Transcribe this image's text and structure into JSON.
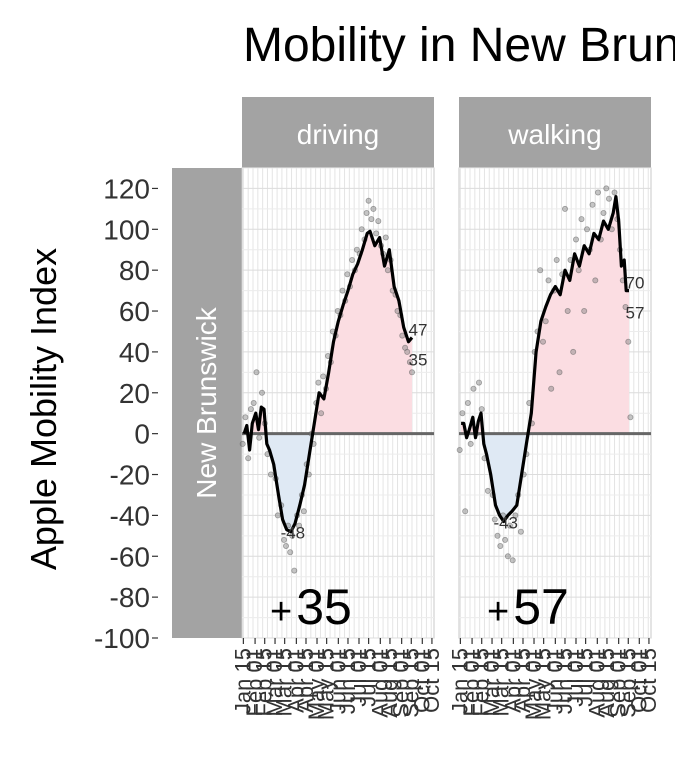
{
  "chart_data": {
    "type": "line",
    "title": "Mobility in New Brunswick",
    "ylabel": "Apple Mobility Index",
    "xlabel": "",
    "row_label": "New Brunswick",
    "ylim": [
      -100,
      130
    ],
    "yticks": [
      120,
      100,
      80,
      60,
      40,
      20,
      0,
      -20,
      -40,
      -60,
      -80,
      -100
    ],
    "x_range": [
      "2020-01-13",
      "2020-10-18"
    ],
    "xticks": [
      {
        "date": "2020-01-15",
        "label": "Jan 15"
      },
      {
        "date": "2020-02-01",
        "label": "Feb 01"
      },
      {
        "date": "2020-02-15",
        "label": "Feb 15"
      },
      {
        "date": "2020-03-01",
        "label": "Mar 01"
      },
      {
        "date": "2020-03-15",
        "label": "Mar 15"
      },
      {
        "date": "2020-04-01",
        "label": "Apr 01"
      },
      {
        "date": "2020-04-15",
        "label": "Apr 15"
      },
      {
        "date": "2020-05-01",
        "label": "May 01"
      },
      {
        "date": "2020-05-15",
        "label": "May 15"
      },
      {
        "date": "2020-06-01",
        "label": "Jun 01"
      },
      {
        "date": "2020-06-15",
        "label": "Jun 15"
      },
      {
        "date": "2020-07-01",
        "label": "Jul 01"
      },
      {
        "date": "2020-07-15",
        "label": "Jul 15"
      },
      {
        "date": "2020-08-01",
        "label": "Aug 01"
      },
      {
        "date": "2020-08-15",
        "label": "Aug 15"
      },
      {
        "date": "2020-09-01",
        "label": "Sep 01"
      },
      {
        "date": "2020-09-15",
        "label": "Sep 15"
      },
      {
        "date": "2020-10-01",
        "label": "Oct 01"
      },
      {
        "date": "2020-10-15",
        "label": "Oct 15"
      }
    ],
    "grid": true,
    "colors": {
      "positive_fill": "#fbdde2",
      "negative_fill": "#dfe9f4",
      "line": "#000000",
      "points": "#7f7f7f",
      "strip": "#a3a3a3",
      "zero_line": "#666666"
    },
    "panels": [
      {
        "name": "driving",
        "summary": "+35",
        "min_label": "-48",
        "end_labels": [
          "47",
          "35"
        ],
        "trend": [
          {
            "x": "2020-01-16",
            "y": 0
          },
          {
            "x": "2020-01-20",
            "y": 4
          },
          {
            "x": "2020-01-24",
            "y": -8
          },
          {
            "x": "2020-01-28",
            "y": 5
          },
          {
            "x": "2020-02-02",
            "y": 10
          },
          {
            "x": "2020-02-06",
            "y": 2
          },
          {
            "x": "2020-02-10",
            "y": 13
          },
          {
            "x": "2020-02-14",
            "y": 12
          },
          {
            "x": "2020-02-18",
            "y": -5
          },
          {
            "x": "2020-02-22",
            "y": -8
          },
          {
            "x": "2020-02-28",
            "y": -15
          },
          {
            "x": "2020-03-06",
            "y": -30
          },
          {
            "x": "2020-03-12",
            "y": -42
          },
          {
            "x": "2020-03-18",
            "y": -47
          },
          {
            "x": "2020-03-24",
            "y": -48
          },
          {
            "x": "2020-03-30",
            "y": -44
          },
          {
            "x": "2020-04-06",
            "y": -35
          },
          {
            "x": "2020-04-13",
            "y": -25
          },
          {
            "x": "2020-04-20",
            "y": -10
          },
          {
            "x": "2020-04-27",
            "y": 5
          },
          {
            "x": "2020-05-04",
            "y": 20
          },
          {
            "x": "2020-05-11",
            "y": 17
          },
          {
            "x": "2020-05-18",
            "y": 30
          },
          {
            "x": "2020-05-25",
            "y": 45
          },
          {
            "x": "2020-06-01",
            "y": 55
          },
          {
            "x": "2020-06-08",
            "y": 63
          },
          {
            "x": "2020-06-15",
            "y": 70
          },
          {
            "x": "2020-06-22",
            "y": 78
          },
          {
            "x": "2020-06-29",
            "y": 83
          },
          {
            "x": "2020-07-06",
            "y": 90
          },
          {
            "x": "2020-07-13",
            "y": 98
          },
          {
            "x": "2020-07-17",
            "y": 99
          },
          {
            "x": "2020-07-24",
            "y": 92
          },
          {
            "x": "2020-07-31",
            "y": 96
          },
          {
            "x": "2020-08-07",
            "y": 82
          },
          {
            "x": "2020-08-14",
            "y": 90
          },
          {
            "x": "2020-08-21",
            "y": 72
          },
          {
            "x": "2020-08-28",
            "y": 65
          },
          {
            "x": "2020-09-04",
            "y": 52
          },
          {
            "x": "2020-09-11",
            "y": 45
          },
          {
            "x": "2020-09-16",
            "y": 47
          }
        ],
        "points": [
          {
            "x": "2020-01-14",
            "y": -5
          },
          {
            "x": "2020-01-18",
            "y": 8
          },
          {
            "x": "2020-01-22",
            "y": -12
          },
          {
            "x": "2020-01-26",
            "y": 12
          },
          {
            "x": "2020-01-30",
            "y": 15
          },
          {
            "x": "2020-02-03",
            "y": 30
          },
          {
            "x": "2020-02-07",
            "y": -2
          },
          {
            "x": "2020-02-11",
            "y": 20
          },
          {
            "x": "2020-02-15",
            "y": 5
          },
          {
            "x": "2020-02-19",
            "y": -10
          },
          {
            "x": "2020-02-24",
            "y": -20
          },
          {
            "x": "2020-03-02",
            "y": -22
          },
          {
            "x": "2020-03-05",
            "y": -40
          },
          {
            "x": "2020-03-10",
            "y": -35
          },
          {
            "x": "2020-03-14",
            "y": -52
          },
          {
            "x": "2020-03-17",
            "y": -55
          },
          {
            "x": "2020-03-20",
            "y": -45
          },
          {
            "x": "2020-03-23",
            "y": -58
          },
          {
            "x": "2020-03-26",
            "y": -50
          },
          {
            "x": "2020-03-29",
            "y": -67
          },
          {
            "x": "2020-04-02",
            "y": -40
          },
          {
            "x": "2020-04-05",
            "y": -45
          },
          {
            "x": "2020-04-09",
            "y": -30
          },
          {
            "x": "2020-04-12",
            "y": -38
          },
          {
            "x": "2020-04-16",
            "y": -15
          },
          {
            "x": "2020-04-19",
            "y": -20
          },
          {
            "x": "2020-04-23",
            "y": 0
          },
          {
            "x": "2020-04-26",
            "y": -5
          },
          {
            "x": "2020-04-30",
            "y": 15
          },
          {
            "x": "2020-05-03",
            "y": 25
          },
          {
            "x": "2020-05-07",
            "y": 10
          },
          {
            "x": "2020-05-10",
            "y": 28
          },
          {
            "x": "2020-05-14",
            "y": 22
          },
          {
            "x": "2020-05-17",
            "y": 38
          },
          {
            "x": "2020-05-21",
            "y": 35
          },
          {
            "x": "2020-05-24",
            "y": 50
          },
          {
            "x": "2020-05-28",
            "y": 48
          },
          {
            "x": "2020-05-31",
            "y": 60
          },
          {
            "x": "2020-06-04",
            "y": 58
          },
          {
            "x": "2020-06-07",
            "y": 70
          },
          {
            "x": "2020-06-11",
            "y": 65
          },
          {
            "x": "2020-06-14",
            "y": 78
          },
          {
            "x": "2020-06-18",
            "y": 72
          },
          {
            "x": "2020-06-21",
            "y": 85
          },
          {
            "x": "2020-06-25",
            "y": 80
          },
          {
            "x": "2020-06-28",
            "y": 90
          },
          {
            "x": "2020-07-02",
            "y": 88
          },
          {
            "x": "2020-07-05",
            "y": 100
          },
          {
            "x": "2020-07-09",
            "y": 95
          },
          {
            "x": "2020-07-12",
            "y": 108
          },
          {
            "x": "2020-07-15",
            "y": 114
          },
          {
            "x": "2020-07-19",
            "y": 105
          },
          {
            "x": "2020-07-22",
            "y": 110
          },
          {
            "x": "2020-07-26",
            "y": 98
          },
          {
            "x": "2020-07-29",
            "y": 104
          },
          {
            "x": "2020-08-02",
            "y": 92
          },
          {
            "x": "2020-08-05",
            "y": 88
          },
          {
            "x": "2020-08-09",
            "y": 96
          },
          {
            "x": "2020-08-12",
            "y": 80
          },
          {
            "x": "2020-08-16",
            "y": 85
          },
          {
            "x": "2020-08-19",
            "y": 70
          },
          {
            "x": "2020-08-23",
            "y": 68
          },
          {
            "x": "2020-08-26",
            "y": 60
          },
          {
            "x": "2020-08-30",
            "y": 58
          },
          {
            "x": "2020-09-02",
            "y": 48
          },
          {
            "x": "2020-09-06",
            "y": 42
          },
          {
            "x": "2020-09-09",
            "y": 40
          },
          {
            "x": "2020-09-13",
            "y": 35
          },
          {
            "x": "2020-09-16",
            "y": 30
          }
        ]
      },
      {
        "name": "walking",
        "summary": "+57",
        "min_label": "-43",
        "end_labels": [
          "70",
          "57"
        ],
        "trend": [
          {
            "x": "2020-01-16",
            "y": 5
          },
          {
            "x": "2020-01-20",
            "y": 5
          },
          {
            "x": "2020-01-24",
            "y": -2
          },
          {
            "x": "2020-01-28",
            "y": 2
          },
          {
            "x": "2020-02-02",
            "y": 8
          },
          {
            "x": "2020-02-06",
            "y": -2
          },
          {
            "x": "2020-02-10",
            "y": 6
          },
          {
            "x": "2020-02-14",
            "y": 10
          },
          {
            "x": "2020-02-18",
            "y": -5
          },
          {
            "x": "2020-02-22",
            "y": -10
          },
          {
            "x": "2020-02-28",
            "y": -20
          },
          {
            "x": "2020-03-06",
            "y": -35
          },
          {
            "x": "2020-03-12",
            "y": -40
          },
          {
            "x": "2020-03-18",
            "y": -43
          },
          {
            "x": "2020-03-24",
            "y": -40
          },
          {
            "x": "2020-03-30",
            "y": -38
          },
          {
            "x": "2020-04-06",
            "y": -35
          },
          {
            "x": "2020-04-13",
            "y": -20
          },
          {
            "x": "2020-04-20",
            "y": -5
          },
          {
            "x": "2020-04-27",
            "y": 10
          },
          {
            "x": "2020-05-04",
            "y": 40
          },
          {
            "x": "2020-05-11",
            "y": 55
          },
          {
            "x": "2020-05-18",
            "y": 62
          },
          {
            "x": "2020-05-25",
            "y": 68
          },
          {
            "x": "2020-06-01",
            "y": 72
          },
          {
            "x": "2020-06-08",
            "y": 68
          },
          {
            "x": "2020-06-15",
            "y": 80
          },
          {
            "x": "2020-06-22",
            "y": 75
          },
          {
            "x": "2020-06-29",
            "y": 88
          },
          {
            "x": "2020-07-06",
            "y": 82
          },
          {
            "x": "2020-07-13",
            "y": 92
          },
          {
            "x": "2020-07-20",
            "y": 88
          },
          {
            "x": "2020-07-27",
            "y": 98
          },
          {
            "x": "2020-08-03",
            "y": 95
          },
          {
            "x": "2020-08-10",
            "y": 104
          },
          {
            "x": "2020-08-17",
            "y": 100
          },
          {
            "x": "2020-08-24",
            "y": 108
          },
          {
            "x": "2020-08-28",
            "y": 116
          },
          {
            "x": "2020-09-01",
            "y": 104
          },
          {
            "x": "2020-09-05",
            "y": 82
          },
          {
            "x": "2020-09-09",
            "y": 85
          },
          {
            "x": "2020-09-12",
            "y": 70
          },
          {
            "x": "2020-09-16",
            "y": 70
          }
        ],
        "points": [
          {
            "x": "2020-01-14",
            "y": -8
          },
          {
            "x": "2020-01-18",
            "y": 10
          },
          {
            "x": "2020-01-22",
            "y": -38
          },
          {
            "x": "2020-01-26",
            "y": 15
          },
          {
            "x": "2020-01-30",
            "y": -5
          },
          {
            "x": "2020-02-03",
            "y": 22
          },
          {
            "x": "2020-02-07",
            "y": 0
          },
          {
            "x": "2020-02-11",
            "y": 25
          },
          {
            "x": "2020-02-15",
            "y": 12
          },
          {
            "x": "2020-02-19",
            "y": -12
          },
          {
            "x": "2020-02-24",
            "y": -28
          },
          {
            "x": "2020-03-02",
            "y": -30
          },
          {
            "x": "2020-03-05",
            "y": -42
          },
          {
            "x": "2020-03-09",
            "y": -50
          },
          {
            "x": "2020-03-13",
            "y": -55
          },
          {
            "x": "2020-03-17",
            "y": -40
          },
          {
            "x": "2020-03-20",
            "y": -52
          },
          {
            "x": "2020-03-24",
            "y": -60
          },
          {
            "x": "2020-03-27",
            "y": -45
          },
          {
            "x": "2020-03-31",
            "y": -62
          },
          {
            "x": "2020-04-04",
            "y": -40
          },
          {
            "x": "2020-04-08",
            "y": -30
          },
          {
            "x": "2020-04-12",
            "y": -48
          },
          {
            "x": "2020-04-16",
            "y": -20
          },
          {
            "x": "2020-04-20",
            "y": -10
          },
          {
            "x": "2020-04-24",
            "y": 15
          },
          {
            "x": "2020-04-28",
            "y": 5
          },
          {
            "x": "2020-05-02",
            "y": 40
          },
          {
            "x": "2020-05-06",
            "y": 50
          },
          {
            "x": "2020-05-10",
            "y": 80
          },
          {
            "x": "2020-05-14",
            "y": 45
          },
          {
            "x": "2020-05-18",
            "y": 55
          },
          {
            "x": "2020-05-22",
            "y": 75
          },
          {
            "x": "2020-05-26",
            "y": 22
          },
          {
            "x": "2020-05-30",
            "y": 70
          },
          {
            "x": "2020-06-03",
            "y": 85
          },
          {
            "x": "2020-06-07",
            "y": 30
          },
          {
            "x": "2020-06-11",
            "y": 78
          },
          {
            "x": "2020-06-15",
            "y": 110
          },
          {
            "x": "2020-06-19",
            "y": 60
          },
          {
            "x": "2020-06-23",
            "y": 85
          },
          {
            "x": "2020-06-27",
            "y": 40
          },
          {
            "x": "2020-07-01",
            "y": 95
          },
          {
            "x": "2020-07-05",
            "y": 80
          },
          {
            "x": "2020-07-09",
            "y": 105
          },
          {
            "x": "2020-07-13",
            "y": 60
          },
          {
            "x": "2020-07-17",
            "y": 100
          },
          {
            "x": "2020-07-21",
            "y": 90
          },
          {
            "x": "2020-07-25",
            "y": 112
          },
          {
            "x": "2020-07-29",
            "y": 75
          },
          {
            "x": "2020-08-02",
            "y": 118
          },
          {
            "x": "2020-08-06",
            "y": 95
          },
          {
            "x": "2020-08-10",
            "y": 108
          },
          {
            "x": "2020-08-14",
            "y": 120
          },
          {
            "x": "2020-08-18",
            "y": 115
          },
          {
            "x": "2020-08-22",
            "y": 100
          },
          {
            "x": "2020-08-26",
            "y": 118
          },
          {
            "x": "2020-08-30",
            "y": 105
          },
          {
            "x": "2020-09-03",
            "y": 90
          },
          {
            "x": "2020-09-07",
            "y": 75
          },
          {
            "x": "2020-09-11",
            "y": 62
          },
          {
            "x": "2020-09-15",
            "y": 45
          },
          {
            "x": "2020-09-18",
            "y": 8
          }
        ]
      }
    ]
  }
}
